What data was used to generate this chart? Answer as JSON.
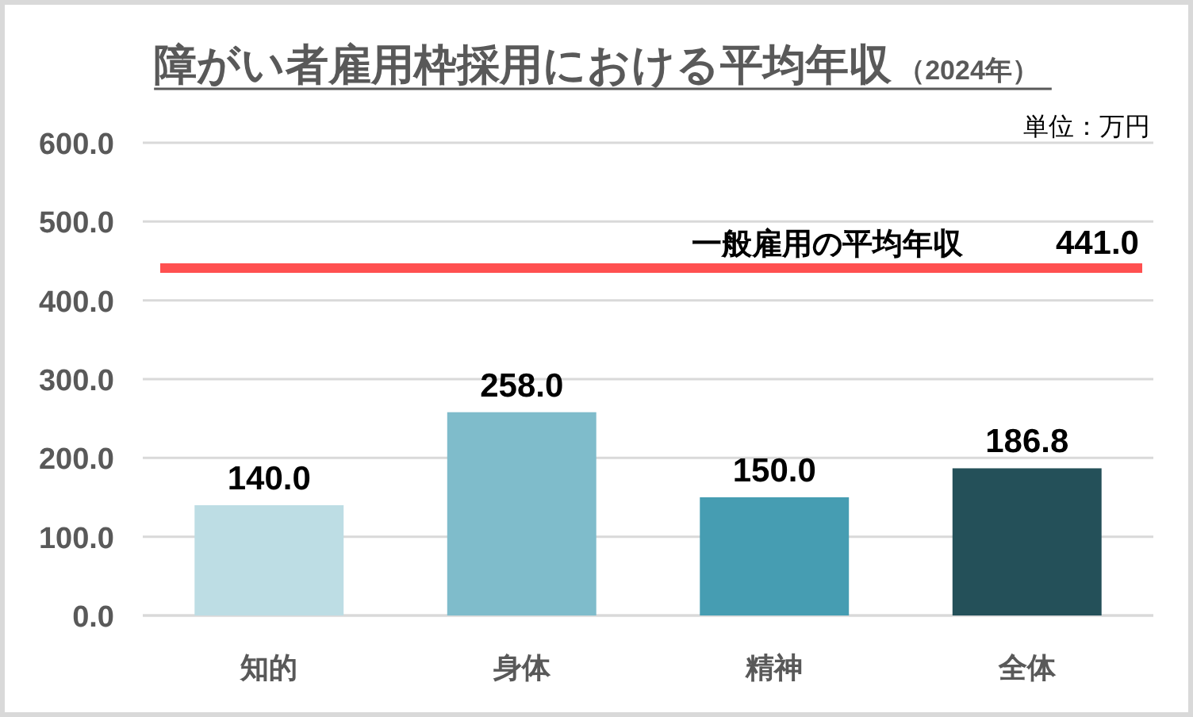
{
  "chart_data": {
    "type": "bar",
    "title": "障がい者雇用枠採用における平均年収",
    "subtitle": "（2024年）",
    "categories": [
      "知的",
      "身体",
      "精神",
      "全体"
    ],
    "values": [
      140.0,
      258.0,
      150.0,
      186.8
    ],
    "colors": [
      "#bddde4",
      "#7fbccb",
      "#469db2",
      "#245059"
    ],
    "value_labels": [
      "140.0",
      "258.0",
      "150.0",
      "186.8"
    ],
    "ylim": [
      0,
      600
    ],
    "yticks": [
      {
        "value": 0,
        "label": "0.0"
      },
      {
        "value": 100,
        "label": "100.0"
      },
      {
        "value": 200,
        "label": "200.0"
      },
      {
        "value": 300,
        "label": "300.0"
      },
      {
        "value": 400,
        "label": "400.0"
      },
      {
        "value": 500,
        "label": "500.0"
      },
      {
        "value": 600,
        "label": "600.0"
      }
    ],
    "grid": "y",
    "ref_lines": [
      {
        "axis": "y",
        "value": 441.0,
        "label": "一般雇用の平均年収",
        "color": "#ff5050"
      }
    ],
    "annotations": [
      "単位：万円",
      {
        "text": "441.0",
        "y": 441.0
      }
    ]
  }
}
